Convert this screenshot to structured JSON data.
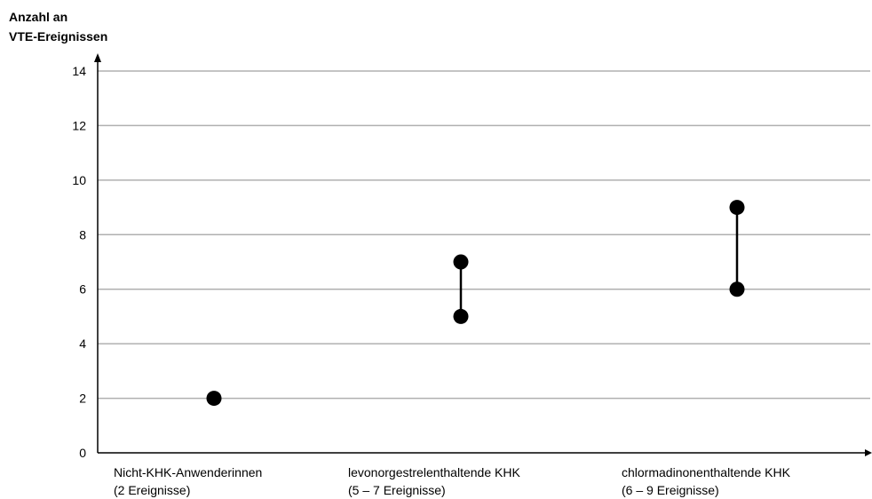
{
  "chart_data": {
    "type": "scatter",
    "ylabel_lines": [
      "Anzahl an",
      "VTE-Ereignissen"
    ],
    "ylim": [
      0,
      14
    ],
    "yticks": [
      0,
      2,
      4,
      6,
      8,
      10,
      12,
      14
    ],
    "grid": true,
    "categories": [
      {
        "label_lines": [
          "Nicht-KHK-Anwenderinnen",
          "(2 Ereignisse)"
        ],
        "low": 2,
        "high": 2
      },
      {
        "label_lines": [
          "levonorgestrelenthaltende KHK",
          "(5 – 7 Ereignisse)"
        ],
        "low": 5,
        "high": 7
      },
      {
        "label_lines": [
          "chlormadinonenthaltende KHK",
          "(6 – 9 Ereignisse)"
        ],
        "low": 6,
        "high": 9
      }
    ],
    "colors": {
      "grid": "#b0b0b0",
      "axis": "#000000",
      "marker": "#000000"
    }
  }
}
